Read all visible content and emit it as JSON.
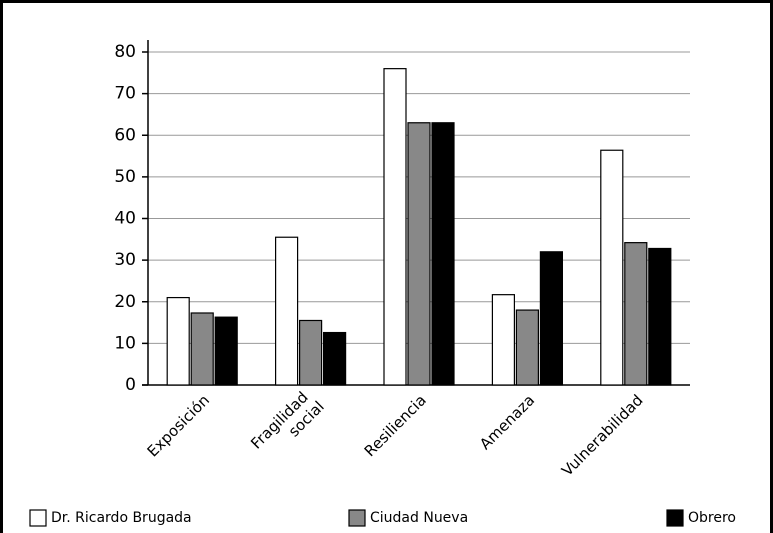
{
  "chart_data": {
    "type": "bar",
    "categories": [
      "Exposición",
      "Fragilidad social",
      "Resiliencia",
      "Amenaza",
      "Vulnerabilidad"
    ],
    "series": [
      {
        "name": "Dr. Ricardo Brugada",
        "color": "#ffffff",
        "values": [
          21,
          35.5,
          76,
          21.7,
          56.4
        ]
      },
      {
        "name": "Ciudad Nueva",
        "color": "#888888",
        "values": [
          17.3,
          15.5,
          63,
          18,
          34.2
        ]
      },
      {
        "name": "Obrero",
        "color": "#000000",
        "values": [
          16.3,
          12.6,
          63,
          32,
          32.8
        ]
      }
    ],
    "ylim": [
      0,
      80
    ],
    "yticks": [
      0,
      10,
      20,
      30,
      40,
      50,
      60,
      70,
      80
    ],
    "grid": true,
    "legend": "bottom"
  }
}
